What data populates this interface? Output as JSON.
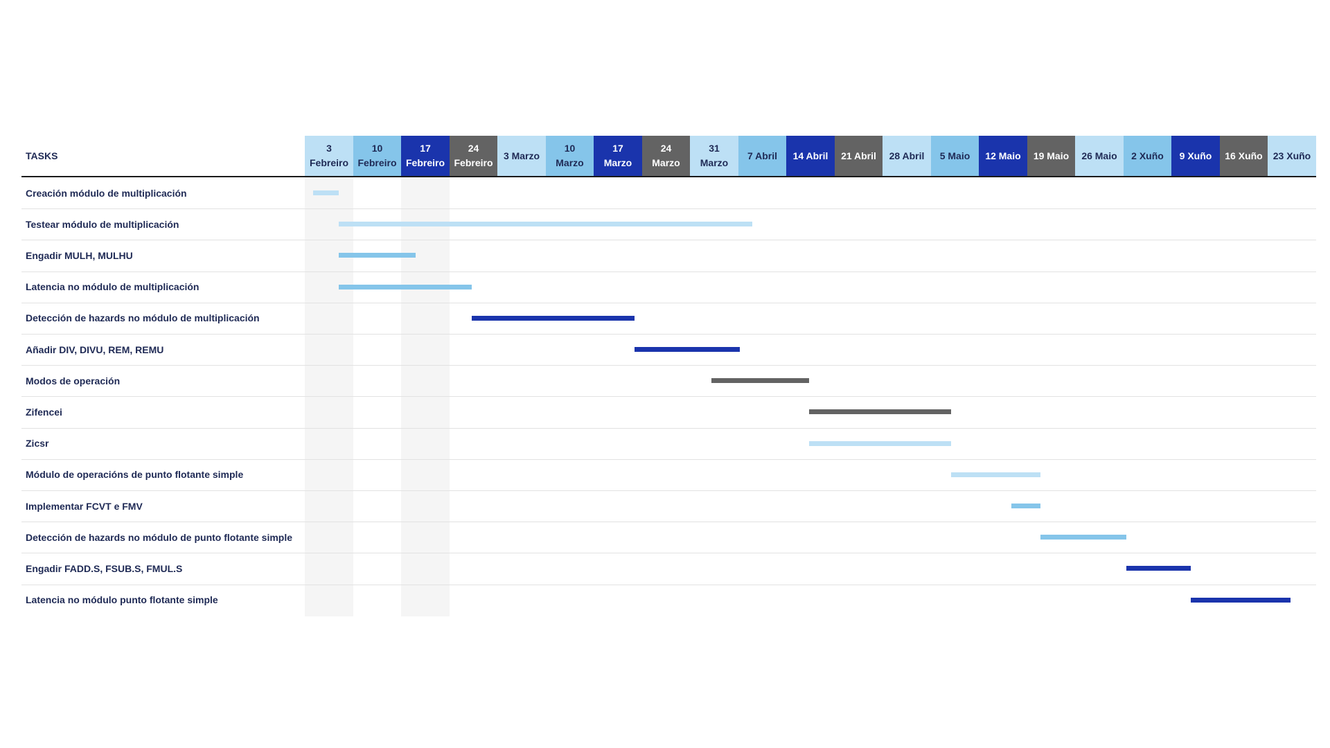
{
  "chart_data": {
    "type": "gantt",
    "tasks_header": "TASKS",
    "weeks": [
      {
        "line1": "3",
        "line2": "Febreiro"
      },
      {
        "line1": "10",
        "line2": "Febreiro"
      },
      {
        "line1": "17",
        "line2": "Febreiro"
      },
      {
        "line1": "24",
        "line2": "Febreiro"
      },
      {
        "line1": "3 Marzo",
        "line2": ""
      },
      {
        "line1": "10",
        "line2": "Marzo"
      },
      {
        "line1": "17",
        "line2": "Marzo"
      },
      {
        "line1": "24",
        "line2": "Marzo"
      },
      {
        "line1": "31",
        "line2": "Marzo"
      },
      {
        "line1": "7 Abril",
        "line2": ""
      },
      {
        "line1": "14 Abril",
        "line2": ""
      },
      {
        "line1": "21 Abril",
        "line2": ""
      },
      {
        "line1": "28 Abril",
        "line2": ""
      },
      {
        "line1": "5 Maio",
        "line2": ""
      },
      {
        "line1": "12 Maio",
        "line2": ""
      },
      {
        "line1": "19 Maio",
        "line2": ""
      },
      {
        "line1": "26 Maio",
        "line2": ""
      },
      {
        "line1": "2 Xuño",
        "line2": ""
      },
      {
        "line1": "9 Xuño",
        "line2": ""
      },
      {
        "line1": "16 Xuño",
        "line2": ""
      },
      {
        "line1": "23 Xuño",
        "line2": ""
      }
    ],
    "header_palette": [
      "#bde0f5",
      "#85c5ea",
      "#1a34ac",
      "#636363"
    ],
    "bar_colors": {
      "light": "#bde0f5",
      "medium": "#85c5ea",
      "dark": "#1a34ac",
      "gray": "#636363"
    },
    "shaded_weeks": [
      0,
      2
    ],
    "tasks": [
      {
        "name": "Creación módulo de multiplicación",
        "start": 0.17,
        "end": 0.7,
        "color": "light"
      },
      {
        "name": "Testear módulo de multiplicación",
        "start": 0.7,
        "end": 9.29,
        "color": "light"
      },
      {
        "name": "Engadir MULH, MULHU",
        "start": 0.7,
        "end": 2.3,
        "color": "medium"
      },
      {
        "name": "Latencia no módulo de multiplicación",
        "start": 0.7,
        "end": 3.47,
        "color": "medium"
      },
      {
        "name": "Detección de hazards no módulo de multiplicación",
        "start": 3.47,
        "end": 6.85,
        "color": "dark"
      },
      {
        "name": "Añadir DIV, DIVU, REM, REMU",
        "start": 6.85,
        "end": 9.04,
        "color": "dark"
      },
      {
        "name": "Modos de operación",
        "start": 8.44,
        "end": 10.47,
        "color": "gray"
      },
      {
        "name": "Zifencei",
        "start": 10.47,
        "end": 13.42,
        "color": "gray"
      },
      {
        "name": "Zicsr",
        "start": 10.47,
        "end": 13.42,
        "color": "light"
      },
      {
        "name": "Módulo de operacións de punto flotante simple",
        "start": 13.42,
        "end": 15.28,
        "color": "light"
      },
      {
        "name": "Implementar FCVT e FMV",
        "start": 14.67,
        "end": 15.28,
        "color": "medium"
      },
      {
        "name": "Detección de hazards no módulo de punto flotante simple",
        "start": 15.28,
        "end": 17.07,
        "color": "medium"
      },
      {
        "name": "Engadir FADD.S, FSUB.S, FMUL.S",
        "start": 17.07,
        "end": 18.4,
        "color": "dark"
      },
      {
        "name": "Latencia no módulo punto flotante simple",
        "start": 18.4,
        "end": 20.48,
        "color": "dark"
      }
    ]
  }
}
